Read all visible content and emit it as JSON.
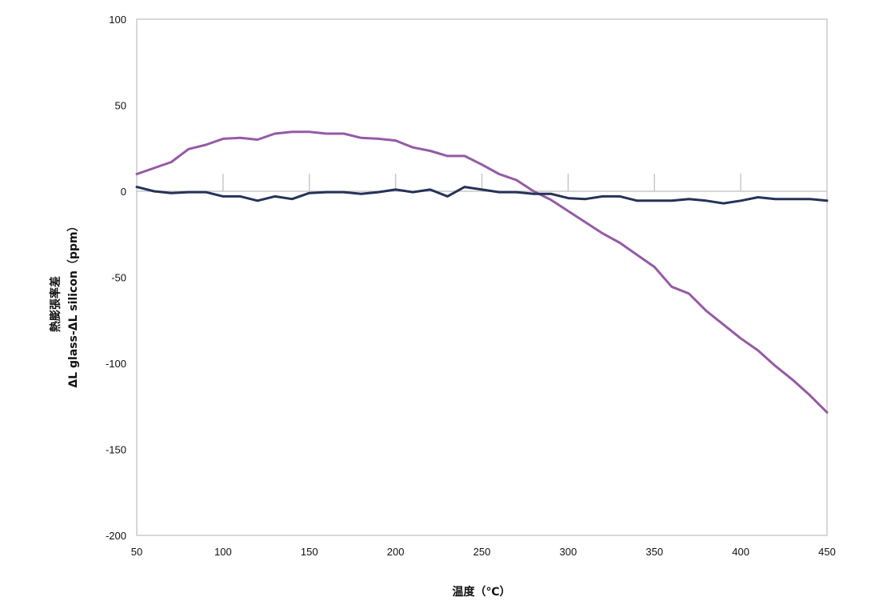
{
  "chart_data": {
    "type": "line",
    "title": "",
    "xlabel": "温度（℃）",
    "ylabel_line1": "熱膨張率差",
    "ylabel_line2": "ΔL glass-ΔL silicon（ppm）",
    "xlim": [
      50,
      450
    ],
    "ylim": [
      -200,
      100
    ],
    "x_ticks": [
      50,
      100,
      150,
      200,
      250,
      300,
      350,
      400,
      450
    ],
    "y_ticks": [
      100,
      50,
      0,
      -50,
      -100,
      -150,
      -200
    ],
    "grid": false,
    "zero_line_minor_ticks": true,
    "series": [
      {
        "color": "#955aa6",
        "x": [
          50,
          60,
          70,
          80,
          90,
          100,
          110,
          120,
          130,
          140,
          150,
          160,
          170,
          180,
          190,
          200,
          210,
          220,
          230,
          240,
          250,
          260,
          270,
          280,
          290,
          300,
          310,
          320,
          330,
          340,
          350,
          360,
          370,
          380,
          390,
          400,
          410,
          420,
          430,
          440,
          450
        ],
        "y": [
          10,
          13.5,
          17,
          24.5,
          27,
          30.5,
          31,
          30,
          33.5,
          34.5,
          34.5,
          33.5,
          33.5,
          31,
          30.5,
          29.5,
          25.5,
          23.5,
          20.5,
          20.5,
          15.5,
          10,
          6.5,
          0,
          -5,
          -11.5,
          -18,
          -24.5,
          -30,
          -37,
          -44,
          -55.5,
          -59.5,
          -69.5,
          -77.5,
          -85.5,
          -92.5,
          -101.5,
          -109.5,
          -118.5,
          -128.5
        ]
      },
      {
        "color": "#253259",
        "x": [
          50,
          60,
          70,
          80,
          90,
          100,
          110,
          120,
          130,
          140,
          150,
          160,
          170,
          180,
          190,
          200,
          210,
          220,
          230,
          240,
          250,
          260,
          270,
          280,
          290,
          300,
          310,
          320,
          330,
          340,
          350,
          360,
          370,
          380,
          390,
          400,
          410,
          420,
          430,
          440,
          450
        ],
        "y": [
          2.5,
          0,
          -1,
          -0.5,
          -0.5,
          -3,
          -3,
          -5.5,
          -3,
          -4.5,
          -1,
          -0.5,
          -0.5,
          -1.5,
          -0.5,
          1,
          -0.5,
          1,
          -3,
          2.5,
          1,
          -0.5,
          -0.5,
          -1.5,
          -1.5,
          -4,
          -4.5,
          -3,
          -3,
          -5.5,
          -5.5,
          -5.5,
          -4.5,
          -5.5,
          -7,
          -5.5,
          -3.5,
          -4.5,
          -4.5,
          -4.5,
          -5.5
        ]
      }
    ]
  }
}
